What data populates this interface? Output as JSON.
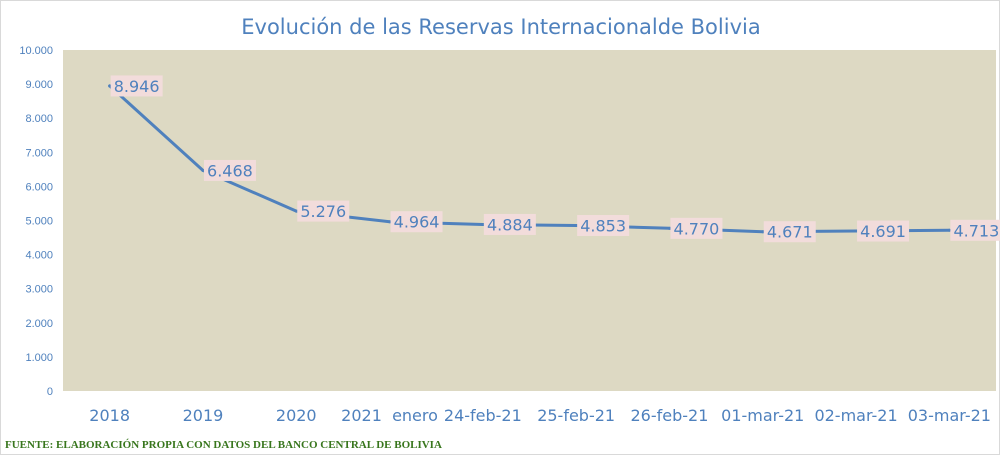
{
  "chart_data": {
    "type": "line",
    "title": "Evolución de las Reservas Internacionalde Bolivia",
    "xlabel": "",
    "ylabel": "",
    "categories": [
      "2018",
      "2019",
      "2020",
      "2021  enero",
      "24-feb-21",
      "25-feb-21",
      "26-feb-21",
      "01-mar-21",
      "02-mar-21",
      "03-mar-21"
    ],
    "series": [
      {
        "values": [
          8946,
          6468,
          5276,
          4964,
          4884,
          4853,
          4770,
          4671,
          4691,
          4713
        ],
        "data_labels": [
          "8.946",
          "6.468",
          "5.276",
          "4.964",
          "4.884",
          "4.853",
          "4.770",
          "4.671",
          "4.691",
          "4.713"
        ]
      }
    ],
    "ylim": [
      0,
      10000
    ],
    "y_ticks": [
      0,
      1000,
      2000,
      3000,
      4000,
      5000,
      6000,
      7000,
      8000,
      9000,
      10000
    ],
    "y_tick_labels": [
      "0",
      "1.000",
      "2.000",
      "3.000",
      "4.000",
      "5.000",
      "6.000",
      "7.000",
      "8.000",
      "9.000",
      "10.000"
    ],
    "grid": false,
    "legend": "none",
    "colors": {
      "line": "#4f81bd",
      "plot_background": "#ddd9c3",
      "data_label_background": "#f2dcdb",
      "text": "#4f81bd",
      "source": "#38761d"
    }
  },
  "source_note": "FUENTE: ELABORACIÓN PROPIA CON DATOS DEL BANCO CENTRAL DE BOLIVIA"
}
